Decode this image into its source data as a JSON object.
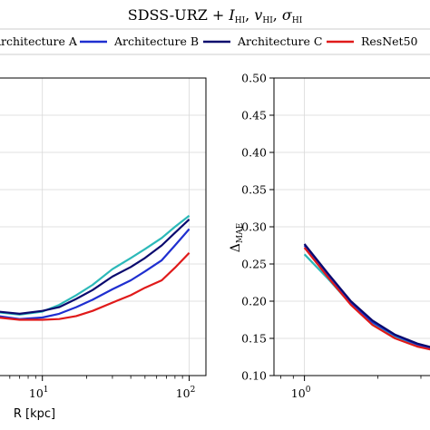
{
  "figure": {
    "title_main": "SDSS-URZ + ",
    "title_I": "I",
    "title_v": "v",
    "title_sigma": "σ",
    "title_sub": "HI",
    "title_sep": ", "
  },
  "legend": {
    "placement": "top",
    "entries": [
      {
        "label": "Architecture A",
        "color": "#2cb9b9"
      },
      {
        "label": "Architecture B",
        "color": "#1f2fd0"
      },
      {
        "label": "Architecture C",
        "color": "#0a0a6e"
      },
      {
        "label": "ResNet50",
        "color": "#e01a1a"
      }
    ]
  },
  "chart_data": [
    {
      "type": "line",
      "panel": "left",
      "xscale": "log",
      "xlabel": "R [kpc]",
      "ylabel": "",
      "xlim": [
        5,
        130
      ],
      "ylim": [
        0.1,
        0.5
      ],
      "grid": true,
      "xtick_labels": [
        {
          "value": 10,
          "base": "10",
          "exp": "1"
        },
        {
          "value": 100,
          "base": "10",
          "exp": "2"
        }
      ],
      "series": [
        {
          "name": "Architecture A",
          "color": "#2cb9b9",
          "x": [
            5,
            7,
            10,
            13,
            17,
            22,
            30,
            40,
            50,
            65,
            80,
            100
          ],
          "y": [
            0.185,
            0.182,
            0.186,
            0.195,
            0.208,
            0.222,
            0.243,
            0.258,
            0.27,
            0.285,
            0.3,
            0.315
          ]
        },
        {
          "name": "Architecture B",
          "color": "#1f2fd0",
          "x": [
            5,
            7,
            10,
            13,
            17,
            22,
            30,
            40,
            50,
            65,
            80,
            100
          ],
          "y": [
            0.18,
            0.176,
            0.178,
            0.183,
            0.192,
            0.202,
            0.216,
            0.228,
            0.24,
            0.255,
            0.275,
            0.297
          ]
        },
        {
          "name": "Architecture C",
          "color": "#0a0a6e",
          "x": [
            5,
            7,
            10,
            13,
            17,
            22,
            30,
            40,
            50,
            65,
            80,
            100
          ],
          "y": [
            0.186,
            0.183,
            0.187,
            0.192,
            0.203,
            0.215,
            0.233,
            0.246,
            0.258,
            0.275,
            0.292,
            0.31
          ]
        },
        {
          "name": "ResNet50",
          "color": "#e01a1a",
          "x": [
            5,
            7,
            10,
            13,
            17,
            22,
            30,
            40,
            50,
            65,
            80,
            100
          ],
          "y": [
            0.178,
            0.175,
            0.175,
            0.176,
            0.18,
            0.187,
            0.198,
            0.208,
            0.218,
            0.228,
            0.245,
            0.265
          ]
        }
      ]
    },
    {
      "type": "line",
      "panel": "right",
      "xscale": "log",
      "xlabel": "",
      "ylabel_base": "Δ",
      "ylabel_sub": "MAE",
      "xlim": [
        0.75,
        3.5
      ],
      "ylim": [
        0.1,
        0.5
      ],
      "grid": true,
      "yticks": [
        0.1,
        0.15,
        0.2,
        0.25,
        0.3,
        0.35,
        0.4,
        0.45,
        0.5
      ],
      "ytick_labels": [
        "0.10",
        "0.15",
        "0.20",
        "0.25",
        "0.30",
        "0.35",
        "0.40",
        "0.45",
        "0.50"
      ],
      "xtick_labels": [
        {
          "value": 1,
          "base": "10",
          "exp": "0"
        }
      ],
      "series": [
        {
          "name": "Architecture A",
          "color": "#2cb9b9",
          "x": [
            1.0,
            1.25,
            1.55,
            1.9,
            2.35,
            2.9,
            3.5
          ],
          "y": [
            0.263,
            0.23,
            0.196,
            0.17,
            0.152,
            0.141,
            0.134
          ]
        },
        {
          "name": "Architecture B",
          "color": "#1f2fd0",
          "x": [
            1.0,
            1.25,
            1.55,
            1.9,
            2.35,
            2.9,
            3.5
          ],
          "y": [
            0.275,
            0.235,
            0.198,
            0.172,
            0.154,
            0.142,
            0.135
          ]
        },
        {
          "name": "Architecture C",
          "color": "#0a0a6e",
          "x": [
            1.0,
            1.25,
            1.55,
            1.9,
            2.35,
            2.9,
            3.5
          ],
          "y": [
            0.277,
            0.237,
            0.2,
            0.174,
            0.155,
            0.143,
            0.136
          ]
        },
        {
          "name": "ResNet50",
          "color": "#e01a1a",
          "x": [
            1.0,
            1.25,
            1.55,
            1.9,
            2.35,
            2.9,
            3.5
          ],
          "y": [
            0.272,
            0.232,
            0.195,
            0.168,
            0.15,
            0.139,
            0.133
          ]
        }
      ]
    }
  ]
}
